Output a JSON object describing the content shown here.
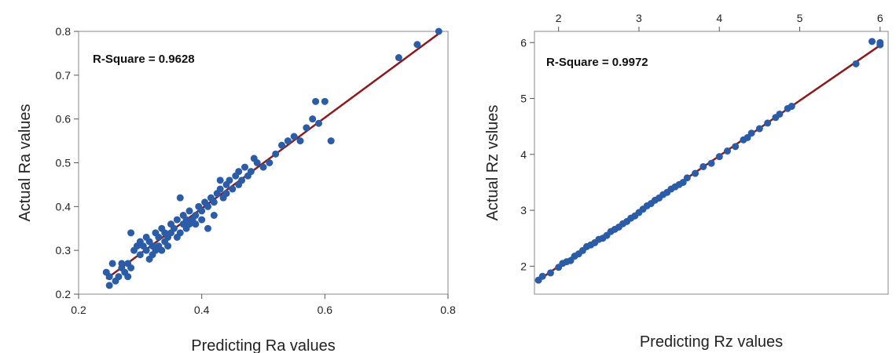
{
  "chart_data": [
    {
      "type": "scatter",
      "annotation": "R-Square = 0.9628",
      "xlabel": "Predicting Ra values",
      "ylabel": "Actual Ra values",
      "xlim": [
        0.2,
        0.8
      ],
      "ylim": [
        0.2,
        0.8
      ],
      "xticks": [
        "0.2",
        "0.4",
        "0.6",
        "0.8"
      ],
      "yticks": [
        "0.2",
        "0.3",
        "0.4",
        "0.5",
        "0.6",
        "0.7",
        "0.8"
      ],
      "fit_line": [
        [
          0.245,
          0.235
        ],
        [
          0.79,
          0.8
        ]
      ],
      "colors": {
        "points": "#2a5ca8",
        "line": "#8b1a1a"
      },
      "points": [
        [
          0.245,
          0.25
        ],
        [
          0.25,
          0.22
        ],
        [
          0.25,
          0.24
        ],
        [
          0.255,
          0.27
        ],
        [
          0.26,
          0.23
        ],
        [
          0.265,
          0.24
        ],
        [
          0.27,
          0.26
        ],
        [
          0.27,
          0.27
        ],
        [
          0.275,
          0.25
        ],
        [
          0.28,
          0.24
        ],
        [
          0.28,
          0.27
        ],
        [
          0.285,
          0.34
        ],
        [
          0.285,
          0.26
        ],
        [
          0.29,
          0.3
        ],
        [
          0.295,
          0.31
        ],
        [
          0.3,
          0.29
        ],
        [
          0.3,
          0.32
        ],
        [
          0.305,
          0.31
        ],
        [
          0.31,
          0.3
        ],
        [
          0.31,
          0.33
        ],
        [
          0.315,
          0.28
        ],
        [
          0.315,
          0.32
        ],
        [
          0.32,
          0.29
        ],
        [
          0.32,
          0.31
        ],
        [
          0.325,
          0.3
        ],
        [
          0.325,
          0.34
        ],
        [
          0.33,
          0.31
        ],
        [
          0.33,
          0.33
        ],
        [
          0.335,
          0.3
        ],
        [
          0.335,
          0.35
        ],
        [
          0.34,
          0.32
        ],
        [
          0.34,
          0.34
        ],
        [
          0.345,
          0.31
        ],
        [
          0.345,
          0.33
        ],
        [
          0.35,
          0.34
        ],
        [
          0.35,
          0.36
        ],
        [
          0.355,
          0.35
        ],
        [
          0.36,
          0.33
        ],
        [
          0.36,
          0.37
        ],
        [
          0.365,
          0.34
        ],
        [
          0.365,
          0.42
        ],
        [
          0.37,
          0.36
        ],
        [
          0.37,
          0.38
        ],
        [
          0.375,
          0.35
        ],
        [
          0.375,
          0.37
        ],
        [
          0.38,
          0.36
        ],
        [
          0.38,
          0.39
        ],
        [
          0.385,
          0.37
        ],
        [
          0.39,
          0.38
        ],
        [
          0.39,
          0.36
        ],
        [
          0.395,
          0.4
        ],
        [
          0.4,
          0.39
        ],
        [
          0.4,
          0.37
        ],
        [
          0.405,
          0.41
        ],
        [
          0.41,
          0.4
        ],
        [
          0.41,
          0.35
        ],
        [
          0.415,
          0.42
        ],
        [
          0.42,
          0.41
        ],
        [
          0.42,
          0.38
        ],
        [
          0.425,
          0.43
        ],
        [
          0.43,
          0.44
        ],
        [
          0.43,
          0.46
        ],
        [
          0.435,
          0.42
        ],
        [
          0.44,
          0.45
        ],
        [
          0.44,
          0.43
        ],
        [
          0.445,
          0.46
        ],
        [
          0.45,
          0.44
        ],
        [
          0.455,
          0.47
        ],
        [
          0.46,
          0.45
        ],
        [
          0.46,
          0.48
        ],
        [
          0.465,
          0.46
        ],
        [
          0.47,
          0.49
        ],
        [
          0.475,
          0.47
        ],
        [
          0.48,
          0.48
        ],
        [
          0.485,
          0.51
        ],
        [
          0.49,
          0.5
        ],
        [
          0.5,
          0.49
        ],
        [
          0.51,
          0.5
        ],
        [
          0.52,
          0.52
        ],
        [
          0.53,
          0.54
        ],
        [
          0.54,
          0.55
        ],
        [
          0.55,
          0.56
        ],
        [
          0.56,
          0.55
        ],
        [
          0.57,
          0.58
        ],
        [
          0.58,
          0.6
        ],
        [
          0.585,
          0.64
        ],
        [
          0.6,
          0.64
        ],
        [
          0.59,
          0.59
        ],
        [
          0.61,
          0.55
        ],
        [
          0.72,
          0.74
        ],
        [
          0.75,
          0.77
        ],
        [
          0.785,
          0.8
        ]
      ]
    },
    {
      "type": "scatter",
      "annotation": "R-Square = 0.9972",
      "xlabel": "Predicting Rz values",
      "ylabel": "Actual Rz vslues",
      "xlim": [
        1.7,
        6.1
      ],
      "ylim": [
        1.5,
        6.2
      ],
      "xticks": [
        "2",
        "3",
        "4",
        "5",
        "6"
      ],
      "yticks": [
        "2",
        "3",
        "4",
        "5",
        "6"
      ],
      "xaxis_position": "top",
      "fit_line": [
        [
          1.75,
          1.75
        ],
        [
          6.0,
          5.95
        ]
      ],
      "colors": {
        "points": "#2a5ca8",
        "line": "#8b1a1a"
      },
      "points": [
        [
          1.75,
          1.75
        ],
        [
          1.8,
          1.82
        ],
        [
          1.9,
          1.88
        ],
        [
          2.0,
          1.98
        ],
        [
          2.05,
          2.05
        ],
        [
          2.1,
          2.08
        ],
        [
          2.15,
          2.1
        ],
        [
          2.2,
          2.18
        ],
        [
          2.25,
          2.22
        ],
        [
          2.3,
          2.28
        ],
        [
          2.35,
          2.35
        ],
        [
          2.4,
          2.38
        ],
        [
          2.45,
          2.42
        ],
        [
          2.5,
          2.48
        ],
        [
          2.55,
          2.5
        ],
        [
          2.6,
          2.55
        ],
        [
          2.65,
          2.62
        ],
        [
          2.7,
          2.66
        ],
        [
          2.75,
          2.7
        ],
        [
          2.8,
          2.76
        ],
        [
          2.85,
          2.8
        ],
        [
          2.9,
          2.86
        ],
        [
          2.95,
          2.9
        ],
        [
          3.0,
          2.96
        ],
        [
          3.05,
          3.02
        ],
        [
          3.1,
          3.08
        ],
        [
          3.15,
          3.12
        ],
        [
          3.2,
          3.18
        ],
        [
          3.25,
          3.22
        ],
        [
          3.3,
          3.28
        ],
        [
          3.35,
          3.32
        ],
        [
          3.4,
          3.38
        ],
        [
          3.45,
          3.42
        ],
        [
          3.5,
          3.46
        ],
        [
          3.55,
          3.5
        ],
        [
          3.6,
          3.58
        ],
        [
          3.7,
          3.66
        ],
        [
          3.8,
          3.78
        ],
        [
          3.9,
          3.84
        ],
        [
          4.0,
          3.96
        ],
        [
          4.1,
          4.06
        ],
        [
          4.2,
          4.14
        ],
        [
          4.3,
          4.26
        ],
        [
          4.35,
          4.3
        ],
        [
          4.4,
          4.38
        ],
        [
          4.5,
          4.46
        ],
        [
          4.6,
          4.56
        ],
        [
          4.7,
          4.66
        ],
        [
          4.75,
          4.72
        ],
        [
          4.85,
          4.82
        ],
        [
          4.9,
          4.86
        ],
        [
          5.7,
          5.62
        ],
        [
          5.9,
          6.02
        ],
        [
          6.0,
          5.96
        ],
        [
          6.0,
          6.0
        ]
      ]
    }
  ]
}
